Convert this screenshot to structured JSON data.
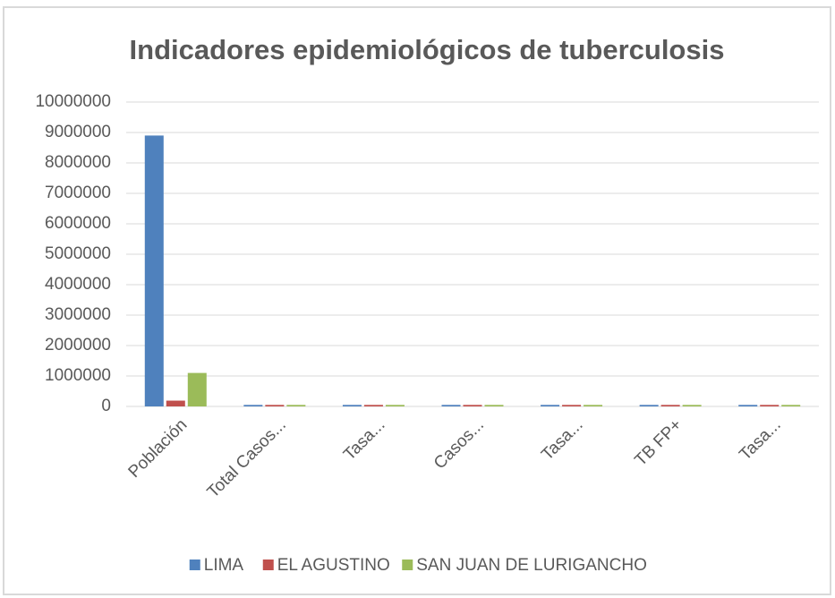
{
  "chart_data": {
    "type": "bar",
    "title": "Indicadores epidemiológicos de tuberculosis",
    "categories": [
      "Población",
      "Total Casos...",
      "Tasa...",
      "Casos...",
      "Tasa...",
      "TB FP+",
      "Tasa..."
    ],
    "series": [
      {
        "name": "LIMA",
        "color": "#4f81bd",
        "values": [
          8900000,
          50000,
          50000,
          50000,
          50000,
          50000,
          50000
        ]
      },
      {
        "name": "EL AGUSTINO",
        "color": "#c0504d",
        "values": [
          190000,
          50000,
          50000,
          50000,
          50000,
          50000,
          50000
        ]
      },
      {
        "name": "SAN JUAN DE LURIGANCHO",
        "color": "#9bbb59",
        "values": [
          1100000,
          50000,
          50000,
          50000,
          50000,
          50000,
          50000
        ]
      }
    ],
    "ylim": [
      0,
      10000000
    ],
    "yticks": [
      0,
      1000000,
      2000000,
      3000000,
      4000000,
      5000000,
      6000000,
      7000000,
      8000000,
      9000000,
      10000000
    ],
    "grid": true,
    "legend": "bottom"
  }
}
